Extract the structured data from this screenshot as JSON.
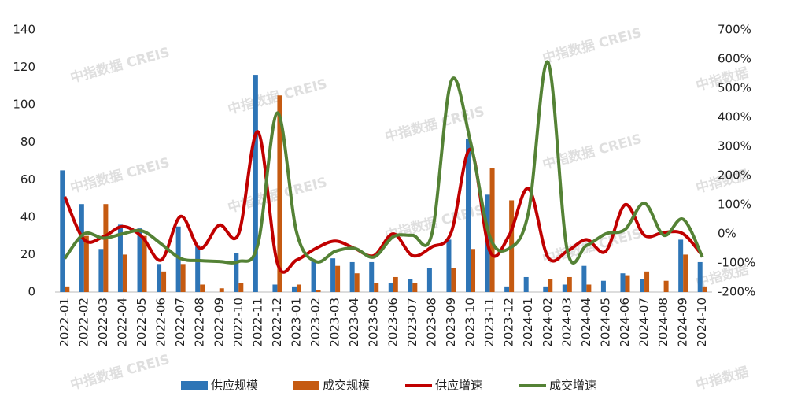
{
  "chart_data": {
    "type": "bar-line",
    "watermark": "中指数据 CREIS",
    "watermark_short": "中指数据",
    "categories": [
      "2022-01",
      "2022-02",
      "2022-03",
      "2022-04",
      "2022-05",
      "2022-06",
      "2022-07",
      "2022-08",
      "2022-09",
      "2022-10",
      "2022-11",
      "2022-12",
      "2023-01",
      "2023-02",
      "2023-03",
      "2023-04",
      "2023-05",
      "2023-06",
      "2023-07",
      "2023-08",
      "2023-09",
      "2023-10",
      "2023-11",
      "2023-12",
      "2024-01",
      "2024-02",
      "2024-03",
      "2024-04",
      "2024-05",
      "2024-06",
      "2024-07",
      "2024-08",
      "2024-09",
      "2024-10"
    ],
    "series": [
      {
        "name": "供应规模",
        "type": "bar",
        "color": "#2e75b6",
        "values": [
          65,
          47,
          23,
          36,
          34,
          15,
          35,
          25,
          0,
          21,
          116,
          4,
          3,
          17,
          18,
          16,
          16,
          5,
          7,
          13,
          28,
          82,
          52,
          3,
          8,
          3,
          4,
          14,
          6,
          10,
          7,
          0,
          28,
          16
        ]
      },
      {
        "name": "成交规模",
        "type": "bar",
        "color": "#c55a11",
        "values": [
          3,
          30,
          47,
          20,
          30,
          11,
          15,
          4,
          2,
          5,
          0,
          105,
          4,
          1,
          14,
          10,
          5,
          8,
          5,
          0,
          13,
          23,
          66,
          49,
          0,
          7,
          8,
          4,
          0,
          9,
          11,
          6,
          20,
          3
        ]
      },
      {
        "name": "供应增速",
        "type": "line",
        "axis": "y2",
        "color": "#c00000",
        "values": [
          127,
          -20,
          -10,
          25,
          -10,
          -90,
          60,
          -50,
          30,
          0,
          350,
          -100,
          -90,
          -50,
          -25,
          -50,
          -75,
          0,
          -75,
          -45,
          5,
          290,
          -60,
          -5,
          155,
          -80,
          -60,
          -20,
          -60,
          100,
          -5,
          5,
          0,
          -75
        ]
      },
      {
        "name": "成交增速",
        "type": "line",
        "axis": "y2",
        "color": "#548235",
        "values": [
          -85,
          0,
          -15,
          0,
          10,
          -35,
          -85,
          -92,
          -95,
          -95,
          -35,
          415,
          5,
          -95,
          -60,
          -50,
          -80,
          -10,
          -5,
          0,
          525,
          315,
          -10,
          -50,
          75,
          590,
          -55,
          -40,
          0,
          15,
          105,
          -5,
          50,
          -80
        ]
      }
    ],
    "ylim": [
      0,
      140
    ],
    "yticks": [
      0,
      20,
      40,
      60,
      80,
      100,
      120,
      140
    ],
    "y2lim": [
      -200,
      700
    ],
    "y2ticks": [
      {
        "value": -200,
        "label": "-200%"
      },
      {
        "value": -100,
        "label": "-100%"
      },
      {
        "value": 0,
        "label": "0%"
      },
      {
        "value": 100,
        "label": "100%"
      },
      {
        "value": 200,
        "label": "200%"
      },
      {
        "value": 300,
        "label": "300%"
      },
      {
        "value": 400,
        "label": "400%"
      },
      {
        "value": 500,
        "label": "500%"
      },
      {
        "value": 600,
        "label": "600%"
      },
      {
        "value": 700,
        "label": "700%"
      }
    ],
    "legend": "bottom"
  }
}
